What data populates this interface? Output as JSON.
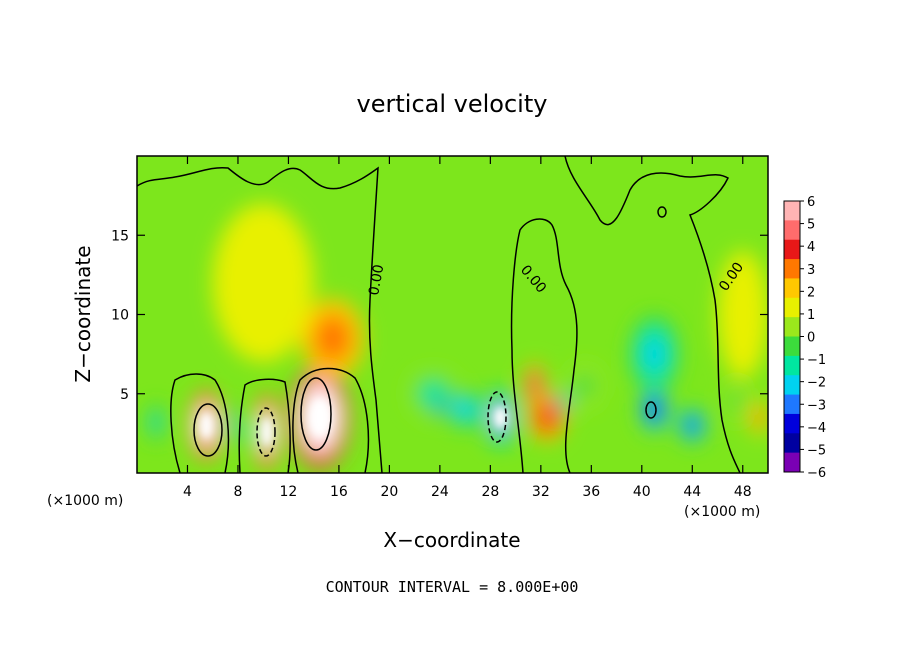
{
  "chart_data": {
    "type": "heatmap",
    "title": "vertical velocity",
    "xlabel": "X−coordinate",
    "ylabel": "Z−coordinate",
    "x_unit_label": "(×1000 m)",
    "y_unit_label": "(×1000 m)",
    "xlim": [
      0,
      50
    ],
    "ylim": [
      0,
      20
    ],
    "x_ticks": [
      4,
      8,
      12,
      16,
      20,
      24,
      28,
      32,
      36,
      40,
      44,
      48
    ],
    "y_ticks": [
      5,
      10,
      15
    ],
    "colorbar": {
      "ticks": [
        6,
        5,
        4,
        3,
        2,
        1,
        0,
        -1,
        -2,
        -3,
        -4,
        -5,
        -6
      ],
      "tick_labels": [
        "6",
        "5",
        "4",
        "3",
        "2",
        "1",
        "0",
        "−1",
        "−2",
        "−3",
        "−4",
        "−5",
        "−6"
      ],
      "colors": [
        "#ffb4b4",
        "#ff6c6c",
        "#e81818",
        "#ff7800",
        "#ffc800",
        "#e8f000",
        "#9be81c",
        "#3cdc3c",
        "#00e6a0",
        "#00d2f0",
        "#1e78ff",
        "#0000dc",
        "#0000a0",
        "#7a00b4"
      ]
    },
    "contour_labels": [
      "0.00",
      "0.00",
      "0.00"
    ],
    "contour_interval_text": "CONTOUR INTERVAL = 8.000E+00",
    "cells": [
      {
        "x": 1.5,
        "z": 3.2,
        "w": -3.2,
        "rx": 0.7,
        "rz": 1.2
      },
      {
        "x": 5.5,
        "z": 3.0,
        "w": 8.0,
        "rx": 1.3,
        "rz": 2.2
      },
      {
        "x": 7.6,
        "z": 3.0,
        "w": -3.0,
        "rx": 0.5,
        "rz": 1.6
      },
      {
        "x": 10.3,
        "z": 2.6,
        "w": 7.5,
        "rx": 1.0,
        "rz": 2.4
      },
      {
        "x": 9.3,
        "z": 2.5,
        "w": -2.5,
        "rx": 0.4,
        "rz": 1.2
      },
      {
        "x": 14.5,
        "z": 3.5,
        "w": 9.0,
        "rx": 2.3,
        "rz": 3.2
      },
      {
        "x": 15.5,
        "z": 8.5,
        "w": 3.0,
        "rx": 2.5,
        "rz": 2.5
      },
      {
        "x": 23.5,
        "z": 5.0,
        "w": -2.5,
        "rx": 2.0,
        "rz": 1.5
      },
      {
        "x": 24.0,
        "z": 4.2,
        "w": -4.8,
        "rx": 0.5,
        "rz": 0.8
      },
      {
        "x": 26.0,
        "z": 4.0,
        "w": -3.8,
        "rx": 1.3,
        "rz": 1.2
      },
      {
        "x": 28.8,
        "z": 3.5,
        "w": -6.5,
        "rx": 1.3,
        "rz": 1.8
      },
      {
        "x": 31.5,
        "z": 5.5,
        "w": 4.5,
        "rx": 0.8,
        "rz": 1.5
      },
      {
        "x": 32.5,
        "z": 3.5,
        "w": 3.5,
        "rx": 1.5,
        "rz": 1.5
      },
      {
        "x": 33.8,
        "z": 4.5,
        "w": -5.0,
        "rx": 0.5,
        "rz": 0.6
      },
      {
        "x": 35.5,
        "z": 5.5,
        "w": -1.5,
        "rx": 1.5,
        "rz": 1.5
      },
      {
        "x": 41.0,
        "z": 7.5,
        "w": -3.5,
        "rx": 2.0,
        "rz": 2.5
      },
      {
        "x": 41.0,
        "z": 4.0,
        "w": -5.5,
        "rx": 1.2,
        "rz": 1.5
      },
      {
        "x": 44.0,
        "z": 3.0,
        "w": -4.8,
        "rx": 1.2,
        "rz": 1.2
      },
      {
        "x": 47.5,
        "z": 4.5,
        "w": -1.2,
        "rx": 0.8,
        "rz": 1.5
      },
      {
        "x": 49.3,
        "z": 3.5,
        "w": 2.5,
        "rx": 0.7,
        "rz": 1.2
      },
      {
        "x": 10.0,
        "z": 12.0,
        "w": 0.8,
        "rx": 4.0,
        "rz": 5.0
      },
      {
        "x": 48.0,
        "z": 10.0,
        "w": 0.6,
        "rx": 2.0,
        "rz": 4.0
      }
    ]
  }
}
